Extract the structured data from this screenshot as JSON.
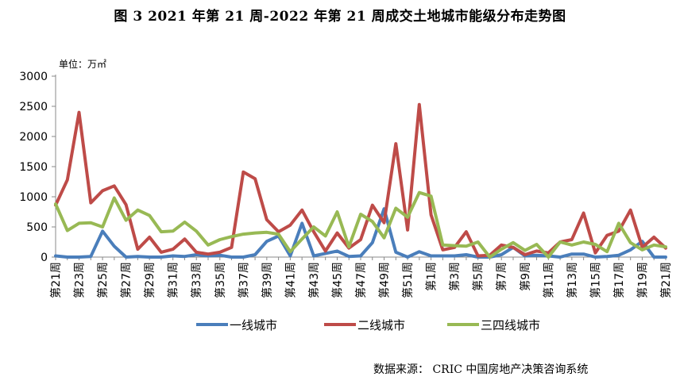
{
  "figure": {
    "title": "图 3   2021 年第 21 周-2022 年第 21 周成交土地城市能级分布走势图",
    "unit": "单位：万㎡",
    "source": "数据来源：  CRIC 中国房地产决策咨询系统"
  },
  "chart_data": {
    "type": "line",
    "ylim": [
      0,
      3000
    ],
    "yticks": [
      "0",
      "500",
      "1000",
      "1500",
      "2000",
      "2500",
      "3000"
    ],
    "ytick_values": [
      0,
      500,
      1000,
      1500,
      2000,
      2500,
      3000
    ],
    "grid": false,
    "legend_position": "bottom",
    "categories": [
      "第21周",
      "第22周",
      "第23周",
      "第24周",
      "第25周",
      "第26周",
      "第27周",
      "第28周",
      "第29周",
      "第30周",
      "第31周",
      "第32周",
      "第33周",
      "第34周",
      "第35周",
      "第36周",
      "第37周",
      "第38周",
      "第39周",
      "第40周",
      "第41周",
      "第42周",
      "第43周",
      "第44周",
      "第45周",
      "第46周",
      "第47周",
      "第48周",
      "第49周",
      "第50周",
      "第51周",
      "第52周",
      "第1周",
      "第2周",
      "第3周",
      "第4周",
      "第5周",
      "第6周",
      "第7周",
      "第8周",
      "第9周",
      "第10周",
      "第11周",
      "第12周",
      "第13周",
      "第14周",
      "第15周",
      "第16周",
      "第17周",
      "第18周",
      "第19周",
      "第20周",
      "第21周"
    ],
    "series": [
      {
        "name": "一线城市",
        "color": "#4A7EBB",
        "values": [
          20,
          0,
          0,
          10,
          430,
          180,
          0,
          10,
          0,
          0,
          20,
          10,
          40,
          20,
          30,
          0,
          0,
          40,
          260,
          350,
          20,
          560,
          20,
          60,
          100,
          10,
          20,
          240,
          800,
          80,
          0,
          90,
          20,
          20,
          20,
          40,
          0,
          0,
          40,
          160,
          20,
          30,
          20,
          0,
          50,
          50,
          0,
          10,
          30,
          120,
          260,
          0,
          0
        ]
      },
      {
        "name": "二线城市",
        "color": "#BE4B48",
        "values": [
          860,
          1280,
          2400,
          900,
          1100,
          1180,
          870,
          130,
          330,
          80,
          130,
          300,
          80,
          50,
          80,
          160,
          1410,
          1300,
          620,
          420,
          530,
          780,
          420,
          100,
          400,
          150,
          290,
          860,
          570,
          1880,
          450,
          2530,
          700,
          120,
          160,
          420,
          20,
          30,
          200,
          160,
          40,
          100,
          70,
          250,
          290,
          730,
          70,
          360,
          430,
          780,
          160,
          330,
          150
        ]
      },
      {
        "name": "三四线城市",
        "color": "#98B954",
        "values": [
          880,
          440,
          560,
          570,
          500,
          980,
          610,
          780,
          690,
          420,
          430,
          580,
          430,
          200,
          290,
          340,
          380,
          400,
          410,
          380,
          90,
          300,
          500,
          350,
          750,
          170,
          710,
          590,
          320,
          810,
          660,
          1070,
          1010,
          200,
          190,
          180,
          250,
          0,
          130,
          240,
          110,
          210,
          0,
          250,
          200,
          250,
          210,
          90,
          560,
          240,
          120,
          200,
          170
        ]
      }
    ],
    "xtick_labels": [
      "第21周",
      "第23周",
      "第25周",
      "第27周",
      "第29周",
      "第31周",
      "第33周",
      "第35周",
      "第37周",
      "第39周",
      "第41周",
      "第43周",
      "第45周",
      "第47周",
      "第49周",
      "第51周",
      "第1周",
      "第3周",
      "第5周",
      "第7周",
      "第9周",
      "第11周",
      "第13周",
      "第15周",
      "第17周",
      "第19周",
      "第21周"
    ]
  }
}
